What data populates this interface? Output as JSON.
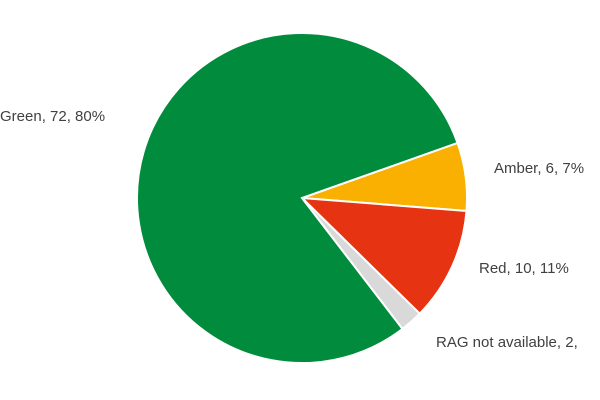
{
  "chart_data": {
    "type": "pie",
    "title": "",
    "start_angle_deg_clockwise_from_top": 70.5,
    "direction": "clockwise",
    "slices": [
      {
        "name": "Amber",
        "value": 6,
        "percent": 7,
        "color": "#F9B000",
        "label": "Amber, 6, 7%"
      },
      {
        "name": "Red",
        "value": 10,
        "percent": 11,
        "color": "#E63312",
        "label": "Red, 10, 11%"
      },
      {
        "name": "RAG not available",
        "value": 2,
        "percent": 2,
        "color": "#D9D9D9",
        "label": "RAG not available, 2,"
      },
      {
        "name": "Green",
        "value": 72,
        "percent": 80,
        "color": "#008C3C",
        "label": "Green, 72, 80%"
      }
    ],
    "legend": "none"
  }
}
